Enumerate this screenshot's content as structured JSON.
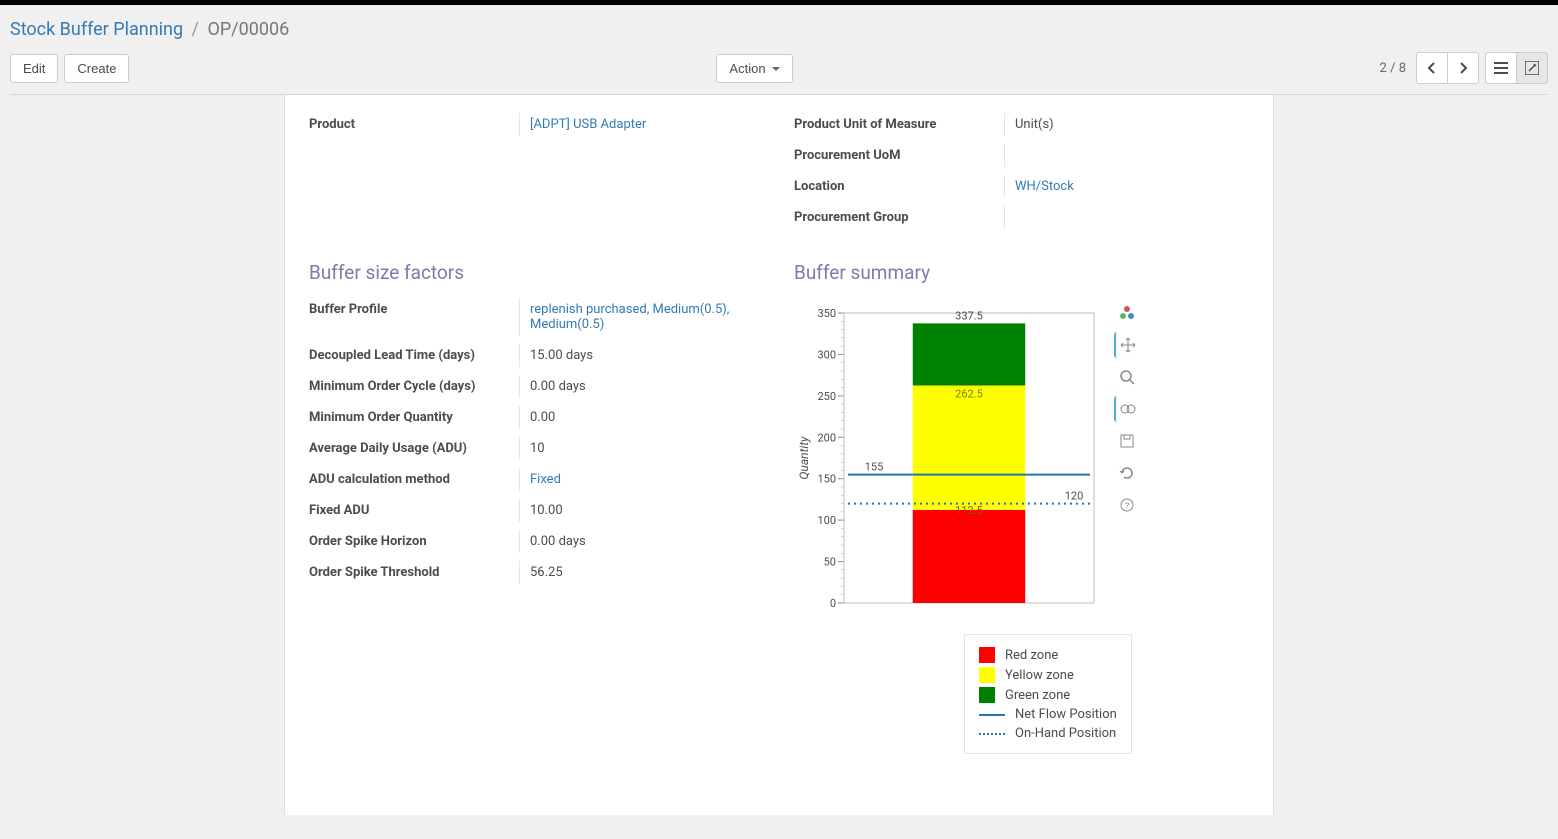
{
  "breadcrumb": {
    "root": "Stock Buffer Planning",
    "current": "OP/00006"
  },
  "toolbar": {
    "edit": "Edit",
    "create": "Create",
    "action": "Action"
  },
  "pager": {
    "current": "2",
    "total": "8"
  },
  "top_fields": {
    "left": {
      "product_label": "Product",
      "product_value": "[ADPT] USB Adapter"
    },
    "right": {
      "uom_label": "Product Unit of Measure",
      "uom_value": "Unit(s)",
      "proc_uom_label": "Procurement UoM",
      "proc_uom_value": "",
      "location_label": "Location",
      "location_value": "WH/Stock",
      "proc_group_label": "Procurement Group",
      "proc_group_value": ""
    }
  },
  "buffer_factors": {
    "title": "Buffer size factors",
    "profile_label": "Buffer Profile",
    "profile_value": "replenish purchased, Medium(0.5), Medium(0.5)",
    "dlt_label": "Decoupled Lead Time (days)",
    "dlt_value": "15.00 days",
    "moc_label": "Minimum Order Cycle (days)",
    "moc_value": "0.00 days",
    "moq_label": "Minimum Order Quantity",
    "moq_value": "0.00",
    "adu_label": "Average Daily Usage (ADU)",
    "adu_value": "10",
    "adu_method_label": "ADU calculation method",
    "adu_method_value": "Fixed",
    "fixed_adu_label": "Fixed ADU",
    "fixed_adu_value": "10.00",
    "osh_label": "Order Spike Horizon",
    "osh_value": "0.00 days",
    "ost_label": "Order Spike Threshold",
    "ost_value": "56.25"
  },
  "buffer_summary": {
    "title": "Buffer summary",
    "ylabel": "Quantity",
    "ylim": [
      0,
      350
    ],
    "ytick_step": 50,
    "red_zone": {
      "from": 0,
      "to": 112.5,
      "color": "#ff0000",
      "label": "112.5"
    },
    "yellow_zone": {
      "from": 112.5,
      "to": 262.5,
      "color": "#ffff00",
      "label": "262.5"
    },
    "green_zone": {
      "from": 262.5,
      "to": 337.5,
      "color": "#008000",
      "label": "337.5"
    },
    "net_flow": {
      "value": 155,
      "color": "#1f77b4",
      "label": "155"
    },
    "on_hand": {
      "value": 120,
      "color": "#1f77b4",
      "label": "120"
    },
    "bar_width": 0.45,
    "background": "#ffffff",
    "grid_color": "#e0e0e0",
    "legend": {
      "red": "Red zone",
      "yellow": "Yellow zone",
      "green": "Green zone",
      "netflow": "Net Flow Position",
      "onhand": "On-Hand Position"
    }
  }
}
